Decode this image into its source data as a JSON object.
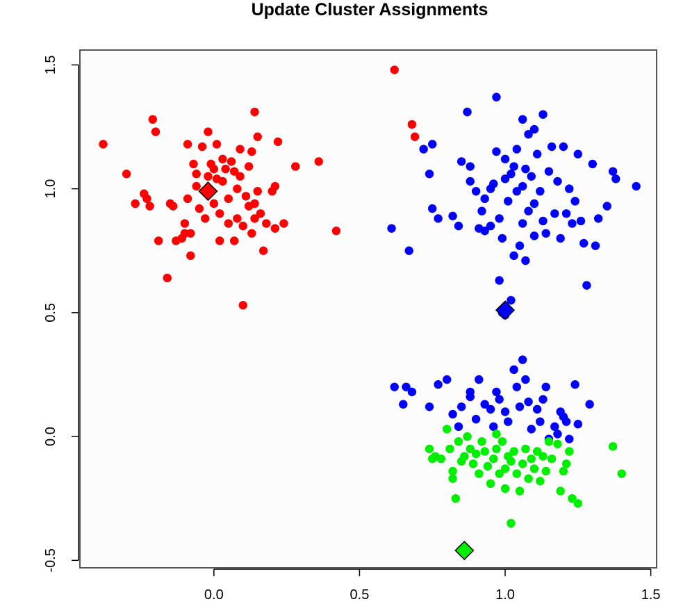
{
  "chart_data": {
    "type": "scatter",
    "title": "Update Cluster Assignments",
    "xlabel": "",
    "ylabel": "",
    "xlim": [
      -0.46,
      1.52
    ],
    "ylim": [
      -0.53,
      1.56
    ],
    "x_ticks": [
      0.0,
      0.5,
      1.0,
      1.5
    ],
    "x_tick_labels": [
      "0.0",
      "0.5",
      "1.0",
      "1.5"
    ],
    "y_ticks": [
      -0.5,
      0.0,
      0.5,
      1.0,
      1.5
    ],
    "y_tick_labels": [
      "-0.5",
      "0.0",
      "0.5",
      "1.0",
      "1.5"
    ],
    "grid": false,
    "legend": "none",
    "series": [
      {
        "color": "#ff0000",
        "marker": "circle",
        "points": [
          [
            0.62,
            1.48
          ],
          [
            -0.38,
            1.18
          ],
          [
            -0.21,
            1.28
          ],
          [
            -0.2,
            1.23
          ],
          [
            0.14,
            1.31
          ],
          [
            0.68,
            1.26
          ],
          [
            0.69,
            1.21
          ],
          [
            -0.3,
            1.06
          ],
          [
            -0.27,
            0.94
          ],
          [
            -0.24,
            0.98
          ],
          [
            -0.23,
            0.96
          ],
          [
            -0.22,
            0.93
          ],
          [
            -0.19,
            0.79
          ],
          [
            -0.16,
            0.64
          ],
          [
            -0.15,
            0.94
          ],
          [
            -0.14,
            0.93
          ],
          [
            -0.13,
            0.79
          ],
          [
            -0.11,
            0.8
          ],
          [
            -0.1,
            0.86
          ],
          [
            -0.1,
            0.82
          ],
          [
            -0.09,
            0.96
          ],
          [
            -0.08,
            0.73
          ],
          [
            -0.08,
            0.82
          ],
          [
            -0.09,
            1.18
          ],
          [
            -0.07,
            1.1
          ],
          [
            -0.06,
            1.06
          ],
          [
            -0.06,
            1.01
          ],
          [
            -0.05,
            0.92
          ],
          [
            -0.04,
            1.17
          ],
          [
            -0.03,
            0.99
          ],
          [
            -0.03,
            0.88
          ],
          [
            -0.02,
            1.23
          ],
          [
            -0.02,
            1.05
          ],
          [
            -0.01,
            1.1
          ],
          [
            0.0,
            1.08
          ],
          [
            0.0,
            0.94
          ],
          [
            0.01,
            1.18
          ],
          [
            0.01,
            1.04
          ],
          [
            0.02,
            0.79
          ],
          [
            0.02,
            0.9
          ],
          [
            0.03,
            1.03
          ],
          [
            0.03,
            1.12
          ],
          [
            0.04,
            1.08
          ],
          [
            0.05,
            0.96
          ],
          [
            0.05,
            0.86
          ],
          [
            0.06,
            1.11
          ],
          [
            0.07,
            1.07
          ],
          [
            0.07,
            0.79
          ],
          [
            0.08,
            1.0
          ],
          [
            0.08,
            0.88
          ],
          [
            0.09,
            1.16
          ],
          [
            0.09,
            1.05
          ],
          [
            0.1,
            0.85
          ],
          [
            0.1,
            0.53
          ],
          [
            0.11,
            0.97
          ],
          [
            0.12,
            0.93
          ],
          [
            0.12,
            1.09
          ],
          [
            0.13,
            1.15
          ],
          [
            0.13,
            0.82
          ],
          [
            0.14,
            0.94
          ],
          [
            0.14,
            0.88
          ],
          [
            0.15,
            1.21
          ],
          [
            0.15,
            0.99
          ],
          [
            0.16,
            0.9
          ],
          [
            0.17,
            0.75
          ],
          [
            0.18,
            0.86
          ],
          [
            0.2,
            0.99
          ],
          [
            0.21,
            1.01
          ],
          [
            0.21,
            0.84
          ],
          [
            0.22,
            1.19
          ],
          [
            0.24,
            0.86
          ],
          [
            0.28,
            1.09
          ],
          [
            0.36,
            1.11
          ],
          [
            0.42,
            0.83
          ]
        ]
      },
      {
        "color": "#0000ff",
        "marker": "circle",
        "points": [
          [
            0.97,
            1.37
          ],
          [
            0.87,
            1.31
          ],
          [
            1.06,
            1.28
          ],
          [
            1.13,
            1.3
          ],
          [
            1.1,
            1.24
          ],
          [
            1.08,
            1.22
          ],
          [
            0.75,
            1.18
          ],
          [
            0.72,
            1.16
          ],
          [
            0.74,
            1.06
          ],
          [
            0.61,
            0.84
          ],
          [
            0.67,
            0.75
          ],
          [
            0.75,
            0.92
          ],
          [
            0.77,
            0.88
          ],
          [
            0.82,
            0.89
          ],
          [
            0.84,
            0.85
          ],
          [
            0.85,
            1.11
          ],
          [
            0.88,
            1.09
          ],
          [
            0.88,
            1.03
          ],
          [
            0.9,
            0.99
          ],
          [
            0.91,
            0.84
          ],
          [
            0.92,
            0.91
          ],
          [
            0.93,
            0.83
          ],
          [
            0.93,
            0.96
          ],
          [
            0.95,
            1.0
          ],
          [
            0.95,
            0.85
          ],
          [
            0.96,
            1.02
          ],
          [
            0.97,
            1.15
          ],
          [
            0.98,
            0.88
          ],
          [
            0.99,
            0.8
          ],
          [
            1.0,
            1.12
          ],
          [
            1.0,
            1.04
          ],
          [
            1.01,
            0.95
          ],
          [
            1.02,
            1.06
          ],
          [
            1.03,
            1.09
          ],
          [
            1.03,
            0.73
          ],
          [
            1.04,
            1.16
          ],
          [
            1.04,
            0.99
          ],
          [
            1.05,
            0.77
          ],
          [
            1.06,
            1.01
          ],
          [
            1.06,
            0.86
          ],
          [
            1.07,
            1.08
          ],
          [
            1.07,
            0.71
          ],
          [
            1.08,
            0.91
          ],
          [
            1.09,
            1.05
          ],
          [
            1.1,
            0.94
          ],
          [
            1.1,
            0.81
          ],
          [
            1.11,
            1.14
          ],
          [
            1.12,
            0.99
          ],
          [
            1.13,
            0.87
          ],
          [
            1.14,
            0.82
          ],
          [
            1.15,
            1.07
          ],
          [
            1.16,
            1.17
          ],
          [
            1.17,
            0.9
          ],
          [
            1.18,
            1.03
          ],
          [
            1.19,
            0.8
          ],
          [
            1.2,
            1.17
          ],
          [
            1.21,
            0.9
          ],
          [
            1.22,
            1.0
          ],
          [
            1.23,
            0.86
          ],
          [
            1.24,
            0.95
          ],
          [
            1.25,
            1.14
          ],
          [
            1.26,
            0.87
          ],
          [
            1.27,
            0.78
          ],
          [
            1.28,
            0.61
          ],
          [
            1.3,
            1.1
          ],
          [
            1.31,
            0.77
          ],
          [
            1.32,
            0.88
          ],
          [
            1.35,
            0.93
          ],
          [
            1.37,
            1.07
          ],
          [
            1.38,
            1.04
          ],
          [
            1.45,
            1.01
          ],
          [
            0.98,
            0.63
          ],
          [
            0.99,
            0.5
          ],
          [
            1.0,
            0.49
          ],
          [
            1.02,
            0.55
          ],
          [
            0.62,
            0.2
          ],
          [
            0.66,
            0.2
          ],
          [
            0.68,
            0.18
          ],
          [
            0.65,
            0.13
          ],
          [
            0.74,
            0.12
          ],
          [
            0.77,
            0.21
          ],
          [
            0.8,
            0.23
          ],
          [
            0.82,
            0.09
          ],
          [
            0.84,
            0.04
          ],
          [
            0.85,
            0.12
          ],
          [
            0.88,
            0.18
          ],
          [
            0.88,
            0.16
          ],
          [
            0.9,
            0.07
          ],
          [
            0.91,
            0.23
          ],
          [
            0.93,
            0.13
          ],
          [
            0.95,
            0.11
          ],
          [
            0.96,
            0.04
          ],
          [
            0.97,
            0.18
          ],
          [
            0.98,
            0.15
          ],
          [
            1.0,
            0.1
          ],
          [
            1.01,
            0.06
          ],
          [
            1.03,
            0.27
          ],
          [
            1.04,
            0.2
          ],
          [
            1.05,
            0.12
          ],
          [
            1.06,
            0.31
          ],
          [
            1.07,
            0.23
          ],
          [
            1.08,
            0.14
          ],
          [
            1.09,
            0.03
          ],
          [
            1.11,
            0.11
          ],
          [
            1.12,
            0.06
          ],
          [
            1.13,
            0.15
          ],
          [
            1.14,
            0.2
          ],
          [
            1.15,
            -0.01
          ],
          [
            1.17,
            0.04
          ],
          [
            1.18,
            0.01
          ],
          [
            1.19,
            0.1
          ],
          [
            1.2,
            0.08
          ],
          [
            1.21,
            0.06
          ],
          [
            1.22,
            -0.01
          ],
          [
            1.24,
            0.21
          ],
          [
            1.25,
            0.05
          ],
          [
            1.29,
            0.13
          ]
        ]
      },
      {
        "color": "#00ee00",
        "marker": "circle",
        "points": [
          [
            0.74,
            -0.05
          ],
          [
            0.75,
            -0.09
          ],
          [
            0.76,
            -0.08
          ],
          [
            0.78,
            -0.09
          ],
          [
            0.8,
            0.03
          ],
          [
            0.81,
            -0.05
          ],
          [
            0.82,
            -0.14
          ],
          [
            0.82,
            -0.17
          ],
          [
            0.83,
            -0.25
          ],
          [
            0.84,
            -0.02
          ],
          [
            0.85,
            -0.1
          ],
          [
            0.86,
            -0.08
          ],
          [
            0.87,
            0.0
          ],
          [
            0.88,
            -0.05
          ],
          [
            0.89,
            -0.11
          ],
          [
            0.9,
            -0.07
          ],
          [
            0.91,
            -0.15
          ],
          [
            0.92,
            -0.02
          ],
          [
            0.93,
            -0.06
          ],
          [
            0.94,
            -0.12
          ],
          [
            0.95,
            -0.19
          ],
          [
            0.96,
            -0.09
          ],
          [
            0.97,
            -0.05
          ],
          [
            0.98,
            -0.15
          ],
          [
            0.99,
            -0.02
          ],
          [
            1.0,
            -0.13
          ],
          [
            1.0,
            -0.21
          ],
          [
            1.01,
            -0.08
          ],
          [
            1.02,
            -0.1
          ],
          [
            1.03,
            -0.06
          ],
          [
            1.04,
            -0.15
          ],
          [
            1.05,
            -0.22
          ],
          [
            1.06,
            -0.11
          ],
          [
            1.07,
            -0.05
          ],
          [
            1.08,
            -0.17
          ],
          [
            1.09,
            -0.09
          ],
          [
            1.1,
            -0.13
          ],
          [
            1.11,
            -0.06
          ],
          [
            1.12,
            -0.18
          ],
          [
            1.13,
            -0.08
          ],
          [
            1.14,
            -0.14
          ],
          [
            1.15,
            -0.02
          ],
          [
            1.16,
            -0.09
          ],
          [
            1.18,
            -0.03
          ],
          [
            1.19,
            -0.22
          ],
          [
            1.2,
            -0.14
          ],
          [
            1.21,
            -0.11
          ],
          [
            1.22,
            -0.06
          ],
          [
            1.23,
            -0.25
          ],
          [
            1.02,
            -0.35
          ],
          [
            1.25,
            -0.27
          ],
          [
            1.37,
            -0.04
          ],
          [
            1.4,
            -0.15
          ],
          [
            0.97,
            0.01
          ]
        ]
      }
    ],
    "centroids": [
      {
        "x": -0.02,
        "y": 0.99,
        "color": "#ff0000",
        "marker": "diamond"
      },
      {
        "x": 1.0,
        "y": 0.51,
        "color": "#0000ff",
        "marker": "diamond"
      },
      {
        "x": 0.86,
        "y": -0.46,
        "color": "#00ee00",
        "marker": "diamond"
      }
    ]
  }
}
